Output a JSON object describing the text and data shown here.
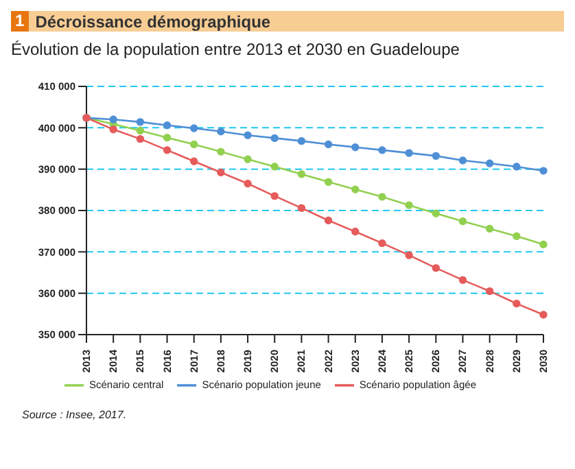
{
  "chart_data": {
    "type": "line",
    "title": "1 Décroissance démographique",
    "subtitle": "Évolution de la population entre 2013 et 2030 en Guadeloupe",
    "categories": [
      "2013",
      "2014",
      "2015",
      "2016",
      "2017",
      "2018",
      "2019",
      "2020",
      "2021",
      "2022",
      "2023",
      "2024",
      "2025",
      "2026",
      "2027",
      "2028",
      "2029",
      "2030"
    ],
    "series": [
      {
        "name": "Scénario central",
        "color": "#92d050",
        "values": [
          402400,
          400900,
          399300,
          397600,
          396000,
          394200,
          392400,
          390600,
          388800,
          386900,
          385100,
          383300,
          381300,
          379300,
          377400,
          375600,
          373800,
          371800
        ]
      },
      {
        "name": "Scénario population jeune",
        "color": "#4f8fd6",
        "values": [
          402400,
          402000,
          401400,
          400600,
          399900,
          399100,
          398200,
          397500,
          396800,
          396000,
          395300,
          394600,
          393900,
          393200,
          392100,
          391400,
          390600,
          389600
        ]
      },
      {
        "name": "Scénario population âgée",
        "color": "#e65b5b",
        "values": [
          402400,
          399600,
          397300,
          394600,
          391900,
          389200,
          386500,
          383500,
          380600,
          377600,
          374900,
          372100,
          369200,
          366100,
          363200,
          360500,
          357500,
          354800
        ]
      }
    ],
    "ylim": [
      350000,
      410000
    ],
    "yticks": [
      {
        "value": 350000,
        "label": "350 000"
      },
      {
        "value": 360000,
        "label": "360 000"
      },
      {
        "value": 370000,
        "label": "370 000"
      },
      {
        "value": 380000,
        "label": "380 000"
      },
      {
        "value": 390000,
        "label": "390 000"
      },
      {
        "value": 400000,
        "label": "400 000"
      },
      {
        "value": 410000,
        "label": "410 000"
      }
    ],
    "grid": "y",
    "legend": "bottom",
    "marker": "circle",
    "line_style": "solid",
    "annotations": [
      "Source : Insee, 2017."
    ]
  }
}
